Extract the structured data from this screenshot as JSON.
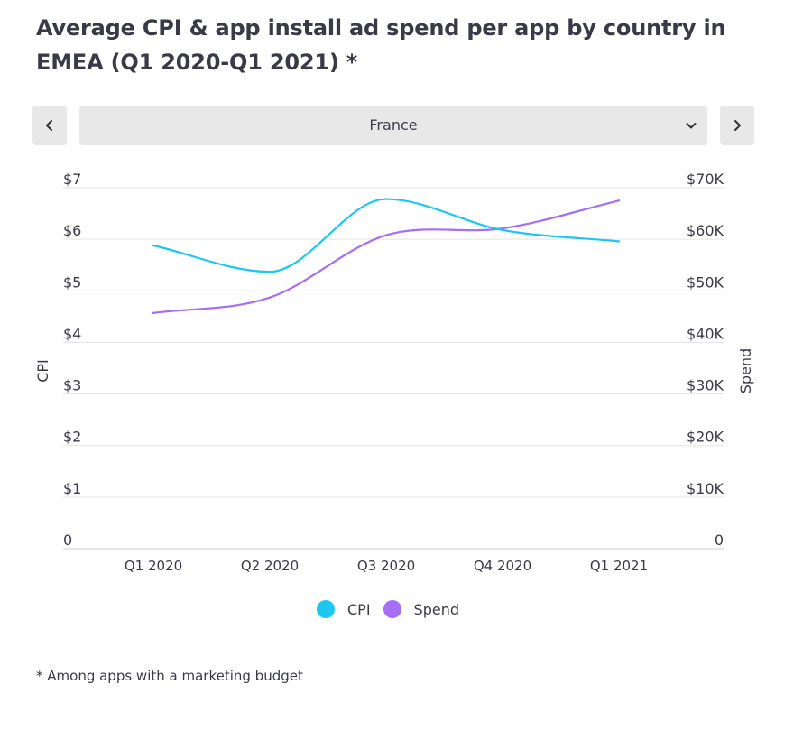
{
  "header": {
    "title": "Average CPI & app install ad spend per app by country in EMEA (Q1 2020-Q1 2021) *"
  },
  "controls": {
    "prev_icon": "chevron-left-icon",
    "next_icon": "chevron-right-icon",
    "country_selected": "France",
    "dropdown_icon": "chevron-down-icon"
  },
  "chart_data": {
    "type": "line",
    "categories": [
      "Q1 2020",
      "Q2 2020",
      "Q3 2020",
      "Q4 2020",
      "Q1 2021"
    ],
    "series": [
      {
        "name": "CPI",
        "axis": "left",
        "color": "#1ec6f2",
        "values": [
          5.88,
          5.37,
          6.78,
          6.18,
          5.96
        ]
      },
      {
        "name": "Spend",
        "axis": "right",
        "color": "#a56ef4",
        "values": [
          45700,
          48700,
          60800,
          62100,
          67500
        ]
      }
    ],
    "y_left": {
      "label": "CPI",
      "range": [
        0,
        7
      ],
      "ticks": [
        0,
        1,
        2,
        3,
        4,
        5,
        6,
        7
      ],
      "tick_labels": [
        "0",
        "$1",
        "$2",
        "$3",
        "$4",
        "$5",
        "$6",
        "$7"
      ]
    },
    "y_right": {
      "label": "Spend",
      "range": [
        0,
        70000
      ],
      "ticks": [
        0,
        10000,
        20000,
        30000,
        40000,
        50000,
        60000,
        70000
      ],
      "tick_labels": [
        "0",
        "$10K",
        "$20K",
        "$30K",
        "$40K",
        "$50K",
        "$60K",
        "$70K"
      ]
    },
    "grid": true,
    "legend_position": "bottom"
  },
  "footnote": "* Among apps with a marketing budget"
}
